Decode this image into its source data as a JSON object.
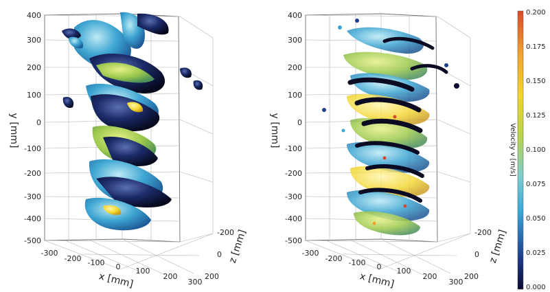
{
  "chart_data": [
    {
      "type": "scatter",
      "panel": "left",
      "title": "",
      "xlabel": "x [mm]",
      "ylabel": "y [mm]",
      "zlabel": "z [mm]",
      "x_ticks": [
        "-300",
        "-200",
        "-100",
        "0",
        "100",
        "200",
        "300"
      ],
      "y_ticks": [
        "400",
        "300",
        "200",
        "100",
        "0",
        "-100",
        "-200",
        "-300",
        "-400",
        "-500"
      ],
      "z_ticks": [
        "-200",
        "0",
        "200"
      ],
      "xlim": [
        -300,
        300
      ],
      "ylim": [
        -500,
        400
      ],
      "zlim": [
        -200,
        200
      ],
      "grid": true
    },
    {
      "type": "scatter",
      "panel": "right",
      "title": "",
      "xlabel": "x [mm]",
      "ylabel": "y [mm]",
      "zlabel": "z [mm]",
      "x_ticks": [
        "-300",
        "-200",
        "-100",
        "0",
        "100",
        "200",
        "300"
      ],
      "y_ticks": [
        "400",
        "300",
        "200",
        "100",
        "0",
        "-100",
        "-200",
        "-300",
        "-400",
        "-500"
      ],
      "z_ticks": [
        "-200",
        "0",
        "200"
      ],
      "xlim": [
        -300,
        300
      ],
      "ylim": [
        -500,
        400
      ],
      "zlim": [
        -200,
        200
      ],
      "grid": true,
      "colorbar": {
        "title": "Velocity v [m/s]",
        "ticks": [
          "0.200",
          "0.175",
          "0.150",
          "0.125",
          "0.100",
          "0.075",
          "0.050",
          "0.025",
          "0.000"
        ],
        "range": [
          0.0,
          0.2
        ],
        "colors": [
          "#0a0a2e",
          "#1f3f8f",
          "#3aa8d6",
          "#7ccbd2",
          "#b8d44a",
          "#f2d52c",
          "#f0a030",
          "#d94a2a"
        ]
      }
    }
  ]
}
